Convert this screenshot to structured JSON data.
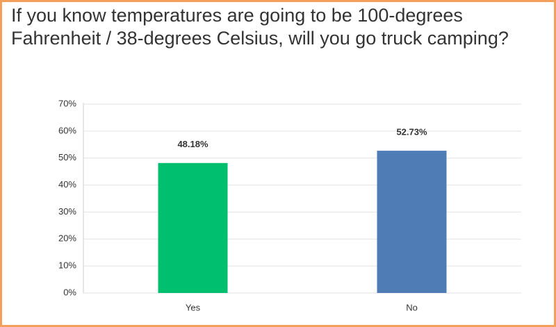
{
  "chart_data": {
    "type": "bar",
    "title": "If you know temperatures are going to be 100-degrees Fahrenheit / 38-degrees Celsius, will you go truck camping?",
    "categories": [
      "Yes",
      "No"
    ],
    "values": [
      48.18,
      52.73
    ],
    "value_labels": [
      "48.18%",
      "52.73%"
    ],
    "colors": [
      "#00bf6f",
      "#507cb6"
    ],
    "ylim": [
      0,
      70
    ],
    "yticks": [
      {
        "value": 0,
        "label": "0%"
      },
      {
        "value": 10,
        "label": "10%"
      },
      {
        "value": 20,
        "label": "20%"
      },
      {
        "value": 30,
        "label": "30%"
      },
      {
        "value": 40,
        "label": "40%"
      },
      {
        "value": 50,
        "label": "50%"
      },
      {
        "value": 60,
        "label": "60%"
      },
      {
        "value": 70,
        "label": "70%"
      }
    ],
    "grid": true
  }
}
